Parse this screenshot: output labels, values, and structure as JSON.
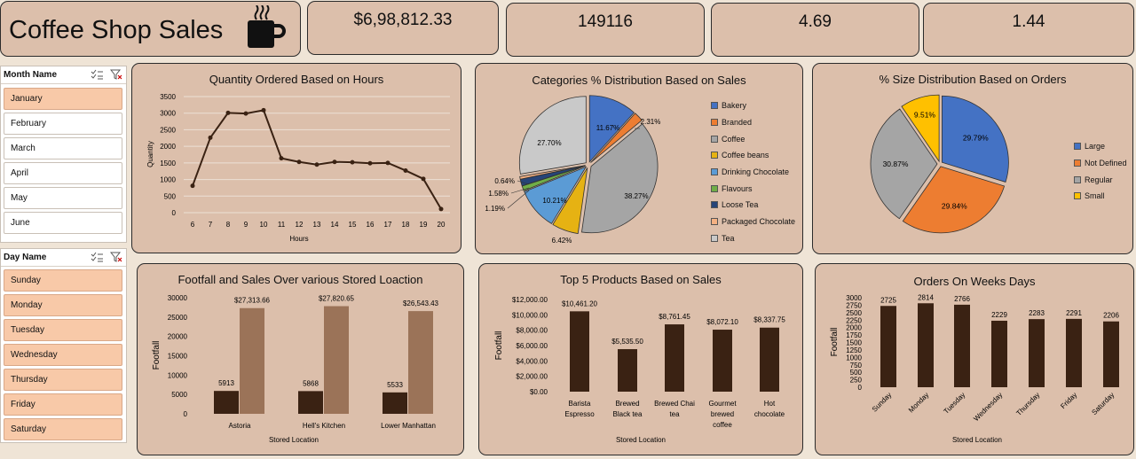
{
  "app": {
    "title": "Coffee Shop Sales",
    "icon": "coffee-cup-icon"
  },
  "kpis": [
    "$6,98,812.33",
    "149116",
    "4.69",
    "1.44"
  ],
  "month_slicer": {
    "title": "Month Name",
    "items": [
      "January",
      "February",
      "March",
      "April",
      "May",
      "June"
    ],
    "selected": [
      "January"
    ]
  },
  "day_slicer": {
    "title": "Day Name",
    "items": [
      "Sunday",
      "Monday",
      "Tuesday",
      "Wednesday",
      "Thursday",
      "Friday",
      "Saturday"
    ],
    "selected": [
      "Sunday",
      "Monday",
      "Tuesday",
      "Wednesday",
      "Thursday",
      "Friday",
      "Saturday"
    ]
  },
  "colors": {
    "bg": "#efe4d6",
    "card": "#dcbfab",
    "dark_brown": "#3a2213",
    "light_brown": "#9b7358"
  },
  "chart_data": [
    {
      "id": "hours",
      "type": "line",
      "title": "Quantity Ordered Based on Hours",
      "xlabel": "Hours",
      "ylabel": "Quantity",
      "x": [
        6,
        7,
        8,
        9,
        10,
        11,
        12,
        13,
        14,
        15,
        16,
        17,
        18,
        19,
        20
      ],
      "values": [
        810,
        2260,
        3010,
        2990,
        3090,
        1640,
        1530,
        1450,
        1530,
        1520,
        1490,
        1500,
        1270,
        1020,
        110
      ],
      "ylim": [
        0,
        3500
      ],
      "yticks": [
        0,
        500,
        1000,
        1500,
        2000,
        2500,
        3000,
        3500
      ],
      "grid": true
    },
    {
      "id": "categories",
      "type": "pie",
      "title": "Categories %  Distribution Based on Sales",
      "labels": [
        "Bakery",
        "Branded",
        "Coffee",
        "Coffee beans",
        "Drinking Chocolate",
        "Flavours",
        "Loose Tea",
        "Packaged Chocolate",
        "Tea"
      ],
      "values": [
        11.67,
        2.31,
        38.27,
        6.42,
        10.21,
        1.19,
        1.58,
        0.64,
        27.7
      ],
      "value_labels": [
        "11.67%",
        "2.31%",
        "38.27%",
        "6.42%",
        "10.21%",
        "1.19%",
        "1.58%",
        "0.64%",
        "27.70%"
      ],
      "colors": [
        "#4472c4",
        "#ed7d31",
        "#a5a5a5",
        "#e6b213",
        "#5b9bd5",
        "#70ad47",
        "#264478",
        "#f4b183",
        "#c9c9c9"
      ],
      "legend": "right"
    },
    {
      "id": "sizes",
      "type": "pie",
      "title": "% Size Distribution Based on Orders",
      "labels": [
        "Large",
        "Not Defined",
        "Regular",
        "Small"
      ],
      "values": [
        29.79,
        29.84,
        30.87,
        9.51
      ],
      "value_labels": [
        "29.79%",
        "29.84%",
        "30.87%",
        "9.51%"
      ],
      "colors": [
        "#4472c4",
        "#ed7d31",
        "#a5a5a5",
        "#ffc000"
      ],
      "legend": "right"
    },
    {
      "id": "footfall",
      "type": "bar",
      "title": "Footfall and Sales Over various Stored Loaction",
      "xlabel": "Stored Location",
      "ylabel": "Footfall",
      "categories": [
        "Astoria",
        "Hell's Kitchen",
        "Lower Manhattan"
      ],
      "series": [
        {
          "values": [
            5913,
            5868,
            5533
          ],
          "labels": [
            "5913",
            "5868",
            "5533"
          ],
          "color": "#3a2213"
        },
        {
          "values": [
            27313.66,
            27820.65,
            26543.43
          ],
          "labels": [
            "$27,313.66",
            "$27,820.65",
            "$26,543.43"
          ],
          "color": "#9b7358"
        }
      ],
      "ylim": [
        0,
        30000
      ],
      "yticks": [
        0,
        5000,
        10000,
        15000,
        20000,
        25000,
        30000
      ]
    },
    {
      "id": "products",
      "type": "bar",
      "title": "Top 5 Products Based on Sales",
      "xlabel": "Stored Location",
      "ylabel": "Footfall",
      "categories": [
        [
          "Barista",
          "Espresso"
        ],
        [
          "Brewed",
          "Black tea"
        ],
        [
          "Brewed Chai",
          "tea"
        ],
        [
          "Gourmet",
          "brewed",
          "coffee"
        ],
        [
          "Hot",
          "chocolate"
        ]
      ],
      "values": [
        10461.2,
        5535.5,
        8761.45,
        8072.1,
        8337.75
      ],
      "value_labels": [
        "$10,461.20",
        "$5,535.50",
        "$8,761.45",
        "$8,072.10",
        "$8,337.75"
      ],
      "ylim": [
        0,
        12000
      ],
      "yticks": [
        0,
        2000,
        4000,
        6000,
        8000,
        10000,
        12000
      ],
      "ytick_labels": [
        "$0.00",
        "$2,000.00",
        "$4,000.00",
        "$6,000.00",
        "$8,000.00",
        "$10,000.00",
        "$12,000.00"
      ]
    },
    {
      "id": "weekdays",
      "type": "bar",
      "title": "Orders On Weeks Days",
      "xlabel": "Stored Location",
      "ylabel": "Footfall",
      "categories": [
        "Sunday",
        "Monday",
        "Tuesday",
        "Wednesday",
        "Thursday",
        "Friday",
        "Saturday"
      ],
      "values": [
        2725,
        2814,
        2766,
        2229,
        2283,
        2291,
        2206
      ],
      "ylim": [
        0,
        3000
      ],
      "yticks": [
        0,
        250,
        500,
        750,
        1000,
        1250,
        1500,
        1750,
        2000,
        2250,
        2500,
        2750,
        3000
      ]
    }
  ]
}
